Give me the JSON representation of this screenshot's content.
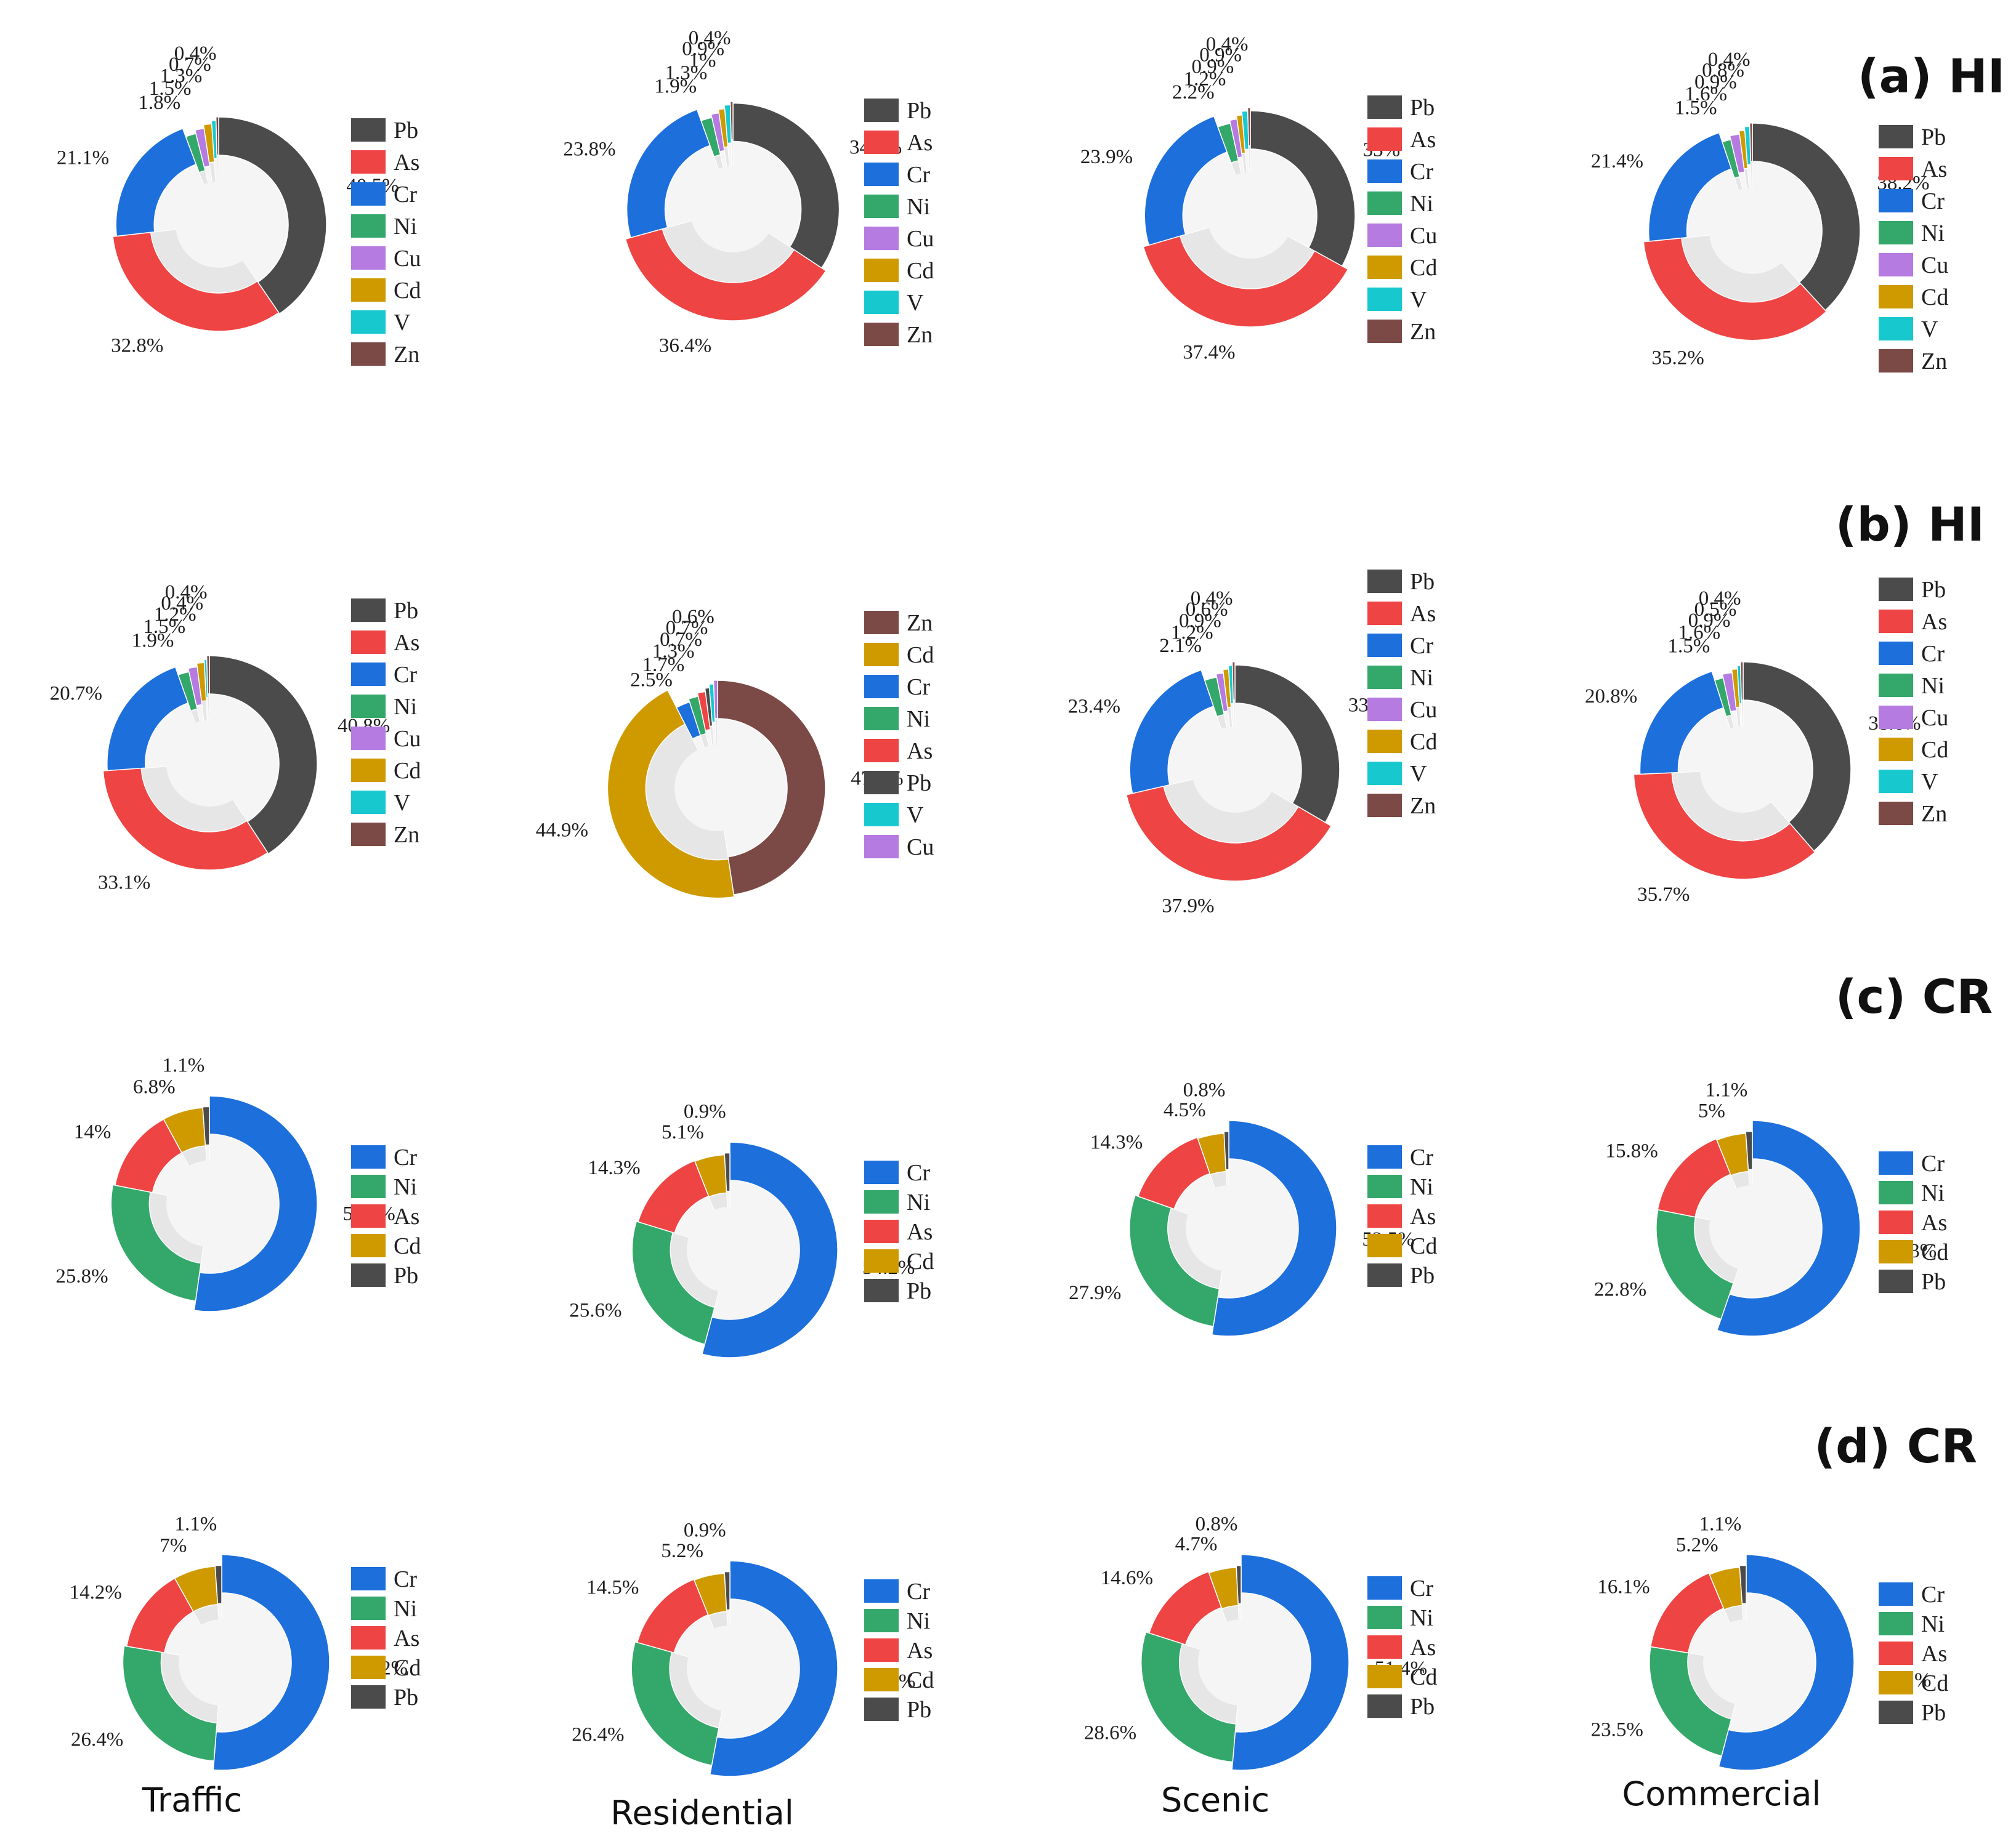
{
  "colors": {
    "Pb": "#4b4b4b",
    "As": "#ef4444",
    "Cr": "#1d6fdc",
    "Ni": "#34a86a",
    "Cu": "#b57be0",
    "Cd": "#cf9a00",
    "V": "#17c9cf",
    "Zn": "#7b4a46",
    "inner_light": "#f5f5f5",
    "inner_mid": "#e6e6e6"
  },
  "rows": [
    {
      "title": "(a)  HI"
    },
    {
      "title": "(b)  HI"
    },
    {
      "title": "(c)  CR"
    },
    {
      "title": "(d)  CR"
    }
  ],
  "columns": [
    "Traffic",
    "Residential",
    "Scenic",
    "Commercial"
  ],
  "chart_data": [
    {
      "type": "pie",
      "variant": "nightingale-rose",
      "row": "(a)  HI",
      "column": "Traffic",
      "legend": [
        "Pb",
        "As",
        "Cr",
        "Ni",
        "Cu",
        "Cd",
        "V",
        "Zn"
      ],
      "slices": [
        {
          "name": "Pb",
          "value": 40.5,
          "label": "40.5%"
        },
        {
          "name": "As",
          "value": 32.8,
          "label": "32.8%"
        },
        {
          "name": "Cr",
          "value": 21.1,
          "label": "21.1%"
        },
        {
          "name": "Ni",
          "value": 1.8,
          "label": "1.8%"
        },
        {
          "name": "Cu",
          "value": 1.5,
          "label": "1.5%"
        },
        {
          "name": "Cd",
          "value": 1.3,
          "label": "1.3%"
        },
        {
          "name": "V",
          "value": 0.7,
          "label": "0.7%"
        },
        {
          "name": "Zn",
          "value": 0.4,
          "label": "0.4%"
        }
      ]
    },
    {
      "type": "pie",
      "variant": "nightingale-rose",
      "row": "(a)  HI",
      "column": "Residential",
      "legend": [
        "Pb",
        "As",
        "Cr",
        "Ni",
        "Cu",
        "Cd",
        "V",
        "Zn"
      ],
      "slices": [
        {
          "name": "Pb",
          "value": 34.3,
          "label": "34.3%"
        },
        {
          "name": "As",
          "value": 36.4,
          "label": "36.4%"
        },
        {
          "name": "Cr",
          "value": 23.8,
          "label": "23.8%"
        },
        {
          "name": "Ni",
          "value": 1.9,
          "label": "1.9%"
        },
        {
          "name": "Cu",
          "value": 1.3,
          "label": "1.3%"
        },
        {
          "name": "Cd",
          "value": 1,
          "label": "1%"
        },
        {
          "name": "V",
          "value": 0.9,
          "label": "0.9%"
        },
        {
          "name": "Zn",
          "value": 0.4,
          "label": "0.4%"
        }
      ]
    },
    {
      "type": "pie",
      "variant": "nightingale-rose",
      "row": "(a)  HI",
      "column": "Scenic",
      "legend": [
        "Pb",
        "As",
        "Cr",
        "Ni",
        "Cu",
        "Cd",
        "V",
        "Zn"
      ],
      "slices": [
        {
          "name": "Pb",
          "value": 33,
          "label": "33%"
        },
        {
          "name": "As",
          "value": 37.4,
          "label": "37.4%"
        },
        {
          "name": "Cr",
          "value": 23.9,
          "label": "23.9%"
        },
        {
          "name": "Ni",
          "value": 2.2,
          "label": "2.2%"
        },
        {
          "name": "Cu",
          "value": 1.2,
          "label": "1.2%"
        },
        {
          "name": "Cd",
          "value": 0.9,
          "label": "0.9%"
        },
        {
          "name": "V",
          "value": 0.9,
          "label": "0.9%"
        },
        {
          "name": "Zn",
          "value": 0.4,
          "label": "0.4%"
        }
      ]
    },
    {
      "type": "pie",
      "variant": "nightingale-rose",
      "row": "(a)  HI",
      "column": "Commercial",
      "legend": [
        "Pb",
        "As",
        "Cr",
        "Ni",
        "Cu",
        "Cd",
        "V",
        "Zn"
      ],
      "slices": [
        {
          "name": "Pb",
          "value": 38.2,
          "label": "38.2%"
        },
        {
          "name": "As",
          "value": 35.2,
          "label": "35.2%"
        },
        {
          "name": "Cr",
          "value": 21.4,
          "label": "21.4%"
        },
        {
          "name": "Ni",
          "value": 1.5,
          "label": "1.5%"
        },
        {
          "name": "Cu",
          "value": 1.6,
          "label": "1.6%"
        },
        {
          "name": "Cd",
          "value": 0.9,
          "label": "0.9%"
        },
        {
          "name": "V",
          "value": 0.8,
          "label": "0.8%"
        },
        {
          "name": "Zn",
          "value": 0.4,
          "label": "0.4%"
        }
      ]
    },
    {
      "type": "pie",
      "variant": "nightingale-rose",
      "row": "(b)  HI",
      "column": "Traffic",
      "legend": [
        "Pb",
        "As",
        "Cr",
        "Ni",
        "Cu",
        "Cd",
        "V",
        "Zn"
      ],
      "slices": [
        {
          "name": "Pb",
          "value": 40.8,
          "label": "40.8%"
        },
        {
          "name": "As",
          "value": 33.1,
          "label": "33.1%"
        },
        {
          "name": "Cr",
          "value": 20.7,
          "label": "20.7%"
        },
        {
          "name": "Ni",
          "value": 1.9,
          "label": "1.9%"
        },
        {
          "name": "Cu",
          "value": 1.5,
          "label": "1.5%"
        },
        {
          "name": "Cd",
          "value": 1.2,
          "label": "1.2%"
        },
        {
          "name": "V",
          "value": 0.4,
          "label": "0.4%"
        },
        {
          "name": "Zn",
          "value": 0.4,
          "label": "0.4%"
        }
      ]
    },
    {
      "type": "pie",
      "variant": "nightingale-rose",
      "row": "(b)  HI",
      "column": "Residential",
      "legend": [
        "Zn",
        "Cd",
        "Cr",
        "Ni",
        "As",
        "Pb",
        "V",
        "Cu"
      ],
      "slices": [
        {
          "name": "Zn",
          "value": 47.6,
          "label": "47.6%"
        },
        {
          "name": "Cd",
          "value": 44.9,
          "label": "44.9%"
        },
        {
          "name": "Cr",
          "value": 2.5,
          "label": "2.5%"
        },
        {
          "name": "Ni",
          "value": 1.7,
          "label": "1.7%"
        },
        {
          "name": "As",
          "value": 1.3,
          "label": "1.3%"
        },
        {
          "name": "Pb",
          "value": 0.7,
          "label": "0.7%"
        },
        {
          "name": "V",
          "value": 0.7,
          "label": "0.7%"
        },
        {
          "name": "Cu",
          "value": 0.6,
          "label": "0.6%"
        }
      ]
    },
    {
      "type": "pie",
      "variant": "nightingale-rose",
      "row": "(b)  HI",
      "column": "Scenic",
      "legend": [
        "Pb",
        "As",
        "Cr",
        "Ni",
        "Cu",
        "Cd",
        "V",
        "Zn"
      ],
      "slices": [
        {
          "name": "Pb",
          "value": 33.4,
          "label": "33.4%"
        },
        {
          "name": "As",
          "value": 37.9,
          "label": "37.9%"
        },
        {
          "name": "Cr",
          "value": 23.4,
          "label": "23.4%"
        },
        {
          "name": "Ni",
          "value": 2.1,
          "label": "2.1%"
        },
        {
          "name": "Cu",
          "value": 1.2,
          "label": "1.2%"
        },
        {
          "name": "Cd",
          "value": 0.9,
          "label": "0.9%"
        },
        {
          "name": "V",
          "value": 0.6,
          "label": "0.6%"
        },
        {
          "name": "Zn",
          "value": 0.4,
          "label": "0.4%"
        }
      ]
    },
    {
      "type": "pie",
      "variant": "nightingale-rose",
      "row": "(b)  HI",
      "column": "Commercial",
      "legend": [
        "Pb",
        "As",
        "Cr",
        "Ni",
        "Cu",
        "Cd",
        "V",
        "Zn"
      ],
      "slices": [
        {
          "name": "Pb",
          "value": 38.6,
          "label": "38.6%"
        },
        {
          "name": "As",
          "value": 35.7,
          "label": "35.7%"
        },
        {
          "name": "Cr",
          "value": 20.8,
          "label": "20.8%"
        },
        {
          "name": "Ni",
          "value": 1.5,
          "label": "1.5%"
        },
        {
          "name": "Cu",
          "value": 1.6,
          "label": "1.6%"
        },
        {
          "name": "Cd",
          "value": 0.9,
          "label": "0.9%"
        },
        {
          "name": "V",
          "value": 0.5,
          "label": "0.5%"
        },
        {
          "name": "Zn",
          "value": 0.4,
          "label": "0.4%"
        }
      ]
    },
    {
      "type": "pie",
      "variant": "nightingale-rose",
      "row": "(c)  CR",
      "column": "Traffic",
      "legend": [
        "Cr",
        "Ni",
        "As",
        "Cd",
        "Pb"
      ],
      "slices": [
        {
          "name": "Cr",
          "value": 52.2,
          "label": "52.2%"
        },
        {
          "name": "Ni",
          "value": 25.8,
          "label": "25.8%"
        },
        {
          "name": "As",
          "value": 14,
          "label": "14%"
        },
        {
          "name": "Cd",
          "value": 6.8,
          "label": "6.8%"
        },
        {
          "name": "Pb",
          "value": 1.1,
          "label": "1.1%"
        }
      ]
    },
    {
      "type": "pie",
      "variant": "nightingale-rose",
      "row": "(c)  CR",
      "column": "Residential",
      "legend": [
        "Cr",
        "Ni",
        "As",
        "Cd",
        "Pb"
      ],
      "slices": [
        {
          "name": "Cr",
          "value": 54.2,
          "label": "54.2%"
        },
        {
          "name": "Ni",
          "value": 25.6,
          "label": "25.6%"
        },
        {
          "name": "As",
          "value": 14.3,
          "label": "14.3%"
        },
        {
          "name": "Cd",
          "value": 5.1,
          "label": "5.1%"
        },
        {
          "name": "Pb",
          "value": 0.9,
          "label": "0.9%"
        }
      ]
    },
    {
      "type": "pie",
      "variant": "nightingale-rose",
      "row": "(c)  CR",
      "column": "Scenic",
      "legend": [
        "Cr",
        "Ni",
        "As",
        "Cd",
        "Pb"
      ],
      "slices": [
        {
          "name": "Cr",
          "value": 52.5,
          "label": "52.5%"
        },
        {
          "name": "Ni",
          "value": 27.9,
          "label": "27.9%"
        },
        {
          "name": "As",
          "value": 14.3,
          "label": "14.3%"
        },
        {
          "name": "Cd",
          "value": 4.5,
          "label": "4.5%"
        },
        {
          "name": "Pb",
          "value": 0.8,
          "label": "0.8%"
        }
      ]
    },
    {
      "type": "pie",
      "variant": "nightingale-rose",
      "row": "(c)  CR",
      "column": "Commercial",
      "legend": [
        "Cr",
        "Ni",
        "As",
        "Cd",
        "Pb"
      ],
      "slices": [
        {
          "name": "Cr",
          "value": 55.3,
          "label": "55.3%"
        },
        {
          "name": "Ni",
          "value": 22.8,
          "label": "22.8%"
        },
        {
          "name": "As",
          "value": 15.8,
          "label": "15.8%"
        },
        {
          "name": "Cd",
          "value": 5,
          "label": "5%"
        },
        {
          "name": "Pb",
          "value": 1.1,
          "label": "1.1%"
        }
      ]
    },
    {
      "type": "pie",
      "variant": "nightingale-rose",
      "row": "(d)  CR",
      "column": "Traffic",
      "legend": [
        "Cr",
        "Ni",
        "As",
        "Cd",
        "Pb"
      ],
      "slices": [
        {
          "name": "Cr",
          "value": 51.2,
          "label": "51.2%"
        },
        {
          "name": "Ni",
          "value": 26.4,
          "label": "26.4%"
        },
        {
          "name": "As",
          "value": 14.2,
          "label": "14.2%"
        },
        {
          "name": "Cd",
          "value": 7,
          "label": "7%"
        },
        {
          "name": "Pb",
          "value": 1.1,
          "label": "1.1%"
        }
      ]
    },
    {
      "type": "pie",
      "variant": "nightingale-rose",
      "row": "(d)  CR",
      "column": "Residential",
      "legend": [
        "Cr",
        "Ni",
        "As",
        "Cd",
        "Pb"
      ],
      "slices": [
        {
          "name": "Cr",
          "value": 52.9,
          "label": "52.9%"
        },
        {
          "name": "Ni",
          "value": 26.4,
          "label": "26.4%"
        },
        {
          "name": "As",
          "value": 14.5,
          "label": "14.5%"
        },
        {
          "name": "Cd",
          "value": 5.2,
          "label": "5.2%"
        },
        {
          "name": "Pb",
          "value": 0.9,
          "label": "0.9%"
        }
      ]
    },
    {
      "type": "pie",
      "variant": "nightingale-rose",
      "row": "(d)  CR",
      "column": "Scenic",
      "legend": [
        "Cr",
        "Ni",
        "As",
        "Cd",
        "Pb"
      ],
      "slices": [
        {
          "name": "Cr",
          "value": 51.4,
          "label": "51.4%"
        },
        {
          "name": "Ni",
          "value": 28.6,
          "label": "28.6%"
        },
        {
          "name": "As",
          "value": 14.6,
          "label": "14.6%"
        },
        {
          "name": "Cd",
          "value": 4.7,
          "label": "4.7%"
        },
        {
          "name": "Pb",
          "value": 0.8,
          "label": "0.8%"
        }
      ]
    },
    {
      "type": "pie",
      "variant": "nightingale-rose",
      "row": "(d)  CR",
      "column": "Commercial",
      "legend": [
        "Cr",
        "Ni",
        "As",
        "Cd",
        "Pb"
      ],
      "slices": [
        {
          "name": "Cr",
          "value": 54.1,
          "label": "54.1%"
        },
        {
          "name": "Ni",
          "value": 23.5,
          "label": "23.5%"
        },
        {
          "name": "As",
          "value": 16.1,
          "label": "16.1%"
        },
        {
          "name": "Cd",
          "value": 5.2,
          "label": "5.2%"
        },
        {
          "name": "Pb",
          "value": 1.1,
          "label": "1.1%"
        }
      ]
    }
  ]
}
